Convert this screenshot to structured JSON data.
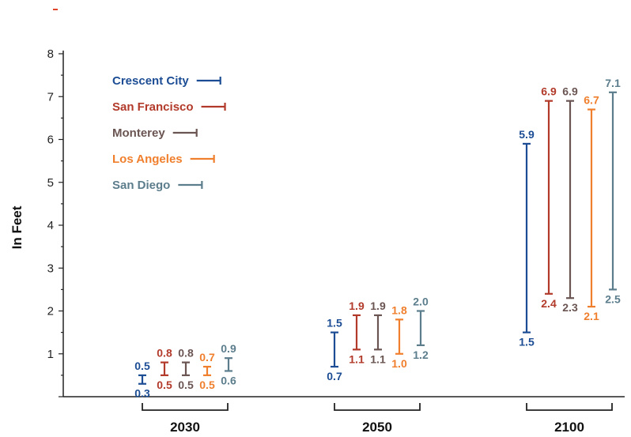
{
  "chart_data": {
    "type": "range-bar",
    "ylabel": "In Feet",
    "xlabel": "",
    "ylim": [
      0,
      8
    ],
    "yticks": [
      "1",
      "2",
      "3",
      "4",
      "5",
      "6",
      "7",
      "8"
    ],
    "categories": [
      "2030",
      "2050",
      "2100"
    ],
    "legend_position": "top-left",
    "series": [
      {
        "name": "Crescent City",
        "color": "#1c4d94",
        "ranges": [
          {
            "low": 0.3,
            "high": 0.5,
            "low_label": "0.3",
            "high_label": "0.5"
          },
          {
            "low": 0.7,
            "high": 1.5,
            "low_label": "0.7",
            "high_label": "1.5"
          },
          {
            "low": 1.5,
            "high": 5.9,
            "low_label": "1.5",
            "high_label": "5.9"
          }
        ]
      },
      {
        "name": "San Francisco",
        "color": "#b23a2a",
        "ranges": [
          {
            "low": 0.5,
            "high": 0.8,
            "low_label": "0.5",
            "high_label": "0.8"
          },
          {
            "low": 1.1,
            "high": 1.9,
            "low_label": "1.1",
            "high_label": "1.9"
          },
          {
            "low": 2.4,
            "high": 6.9,
            "low_label": "2.4",
            "high_label": "6.9"
          }
        ]
      },
      {
        "name": "Monterey",
        "color": "#6a5552",
        "ranges": [
          {
            "low": 0.5,
            "high": 0.8,
            "low_label": "0.5",
            "high_label": "0.8"
          },
          {
            "low": 1.1,
            "high": 1.9,
            "low_label": "1.1",
            "high_label": "1.9"
          },
          {
            "low": 2.3,
            "high": 6.9,
            "low_label": "2.3",
            "high_label": "6.9"
          }
        ]
      },
      {
        "name": "Los Angeles",
        "color": "#f07f2d",
        "ranges": [
          {
            "low": 0.5,
            "high": 0.7,
            "low_label": "0.5",
            "high_label": "0.7"
          },
          {
            "low": 1.0,
            "high": 1.8,
            "low_label": "1.0",
            "high_label": "1.8"
          },
          {
            "low": 2.1,
            "high": 6.7,
            "low_label": "2.1",
            "high_label": "6.7"
          }
        ]
      },
      {
        "name": "San Diego",
        "color": "#5c7d8c",
        "ranges": [
          {
            "low": 0.6,
            "high": 0.9,
            "low_label": "0.6",
            "high_label": "0.9"
          },
          {
            "low": 1.2,
            "high": 2.0,
            "low_label": "1.2",
            "high_label": "2.0"
          },
          {
            "low": 2.5,
            "high": 7.1,
            "low_label": "2.5",
            "high_label": "7.1"
          }
        ]
      }
    ]
  }
}
